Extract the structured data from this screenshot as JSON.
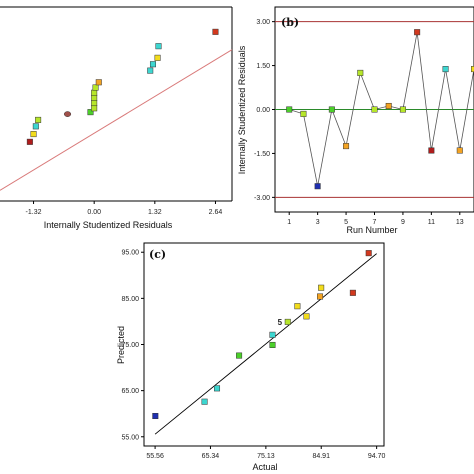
{
  "colors": {
    "blue": "#1f2fb0",
    "cyan": "#3dd6d0",
    "green": "#4ccf2a",
    "yellowgreen": "#b6e62a",
    "yellow": "#f2dc1c",
    "orange": "#f3a322",
    "red": "#d2381e",
    "darkred": "#b01c1c",
    "brown": "#a0504a",
    "fitline": "#d97a7a",
    "limitline": "#a83232",
    "zeroline": "#2a8a2a"
  },
  "chart_data": [
    {
      "panel": "a",
      "type": "scatter",
      "title": "",
      "xlabel": "Internally Studentized Residuals",
      "ylabel": "",
      "xlim": [
        -2.05,
        3.0
      ],
      "ylim": [
        0,
        1
      ],
      "xticks": [
        "-1.32",
        "0.00",
        "1.32",
        "2.64"
      ],
      "xtick_values": [
        -1.32,
        0.0,
        1.32,
        2.64
      ],
      "fit_line": {
        "x": [
          -2.05,
          3.0
        ],
        "y": [
          0.055,
          0.78
        ]
      },
      "points": [
        {
          "x": -1.4,
          "y": 0.305,
          "color": "darkred",
          "shape": "square"
        },
        {
          "x": -1.32,
          "y": 0.345,
          "color": "yellow",
          "shape": "square"
        },
        {
          "x": -1.27,
          "y": 0.385,
          "color": "cyan",
          "shape": "square"
        },
        {
          "x": -1.22,
          "y": 0.418,
          "color": "yellowgreen",
          "shape": "square"
        },
        {
          "x": -0.58,
          "y": 0.448,
          "color": "brown",
          "shape": "circle"
        },
        {
          "x": -0.08,
          "y": 0.458,
          "color": "green",
          "shape": "square"
        },
        {
          "x": 0.0,
          "y": 0.478,
          "color": "yellowgreen",
          "shape": "square"
        },
        {
          "x": 0.0,
          "y": 0.505,
          "color": "yellowgreen",
          "shape": "square"
        },
        {
          "x": 0.0,
          "y": 0.532,
          "color": "yellowgreen",
          "shape": "square"
        },
        {
          "x": 0.0,
          "y": 0.558,
          "color": "yellowgreen",
          "shape": "square"
        },
        {
          "x": 0.03,
          "y": 0.585,
          "color": "yellowgreen",
          "shape": "square"
        },
        {
          "x": 0.1,
          "y": 0.612,
          "color": "orange",
          "shape": "square"
        },
        {
          "x": 1.22,
          "y": 0.672,
          "color": "cyan",
          "shape": "square"
        },
        {
          "x": 1.28,
          "y": 0.705,
          "color": "cyan",
          "shape": "square"
        },
        {
          "x": 1.38,
          "y": 0.738,
          "color": "yellow",
          "shape": "square"
        },
        {
          "x": 1.4,
          "y": 0.798,
          "color": "cyan",
          "shape": "square"
        },
        {
          "x": 2.64,
          "y": 0.872,
          "color": "red",
          "shape": "square"
        }
      ]
    },
    {
      "panel": "b",
      "type": "line",
      "tag": "(b)",
      "title": "",
      "xlabel": "Run Number",
      "ylabel": "Internally Studentized Residuals",
      "xlim": [
        0,
        14
      ],
      "ylim": [
        -3.5,
        3.5
      ],
      "xticks": [
        "1",
        "3",
        "5",
        "7",
        "9",
        "11",
        "13"
      ],
      "xtick_values": [
        1,
        3,
        5,
        7,
        9,
        11,
        13
      ],
      "yticks": [
        "3.00",
        "1.50",
        "0.00",
        "-1.50",
        "-3.00"
      ],
      "ytick_values": [
        3.0,
        1.5,
        0.0,
        -1.5,
        -3.0
      ],
      "limits": [
        3.0,
        -3.0
      ],
      "x": [
        1,
        2,
        3,
        4,
        5,
        6,
        7,
        8,
        9,
        10,
        11,
        12,
        13,
        14
      ],
      "y": [
        0.0,
        -0.15,
        -2.62,
        0.0,
        -1.25,
        1.25,
        0.0,
        0.12,
        0.0,
        2.64,
        -1.4,
        1.38,
        -1.4,
        1.38
      ],
      "colors": [
        "green",
        "yellowgreen",
        "blue",
        "green",
        "orange",
        "yellowgreen",
        "yellowgreen",
        "orange",
        "yellowgreen",
        "red",
        "darkred",
        "cyan",
        "orange",
        "yellow"
      ]
    },
    {
      "panel": "c",
      "type": "scatter",
      "tag": "(c)",
      "title": "",
      "xlabel": "Actual",
      "ylabel": "Predicted",
      "xlim": [
        53.6,
        96.0
      ],
      "ylim": [
        53.0,
        97.0
      ],
      "xticks": [
        "55.56",
        "65.34",
        "75.13",
        "84.91",
        "94.70"
      ],
      "xtick_values": [
        55.56,
        65.34,
        75.13,
        84.91,
        94.7
      ],
      "yticks": [
        "95.00",
        "85.00",
        "75.00",
        "65.00",
        "55.00"
      ],
      "ytick_values": [
        95.0,
        85.0,
        75.0,
        65.0,
        55.0
      ],
      "fit_line": {
        "x": [
          55.56,
          94.7
        ],
        "y": [
          55.56,
          94.7
        ]
      },
      "annotations": [
        {
          "text": "5",
          "x": 78.0,
          "y": 79.9
        }
      ],
      "points": [
        {
          "x": 55.6,
          "y": 59.5,
          "color": "blue"
        },
        {
          "x": 64.3,
          "y": 62.6,
          "color": "cyan"
        },
        {
          "x": 66.5,
          "y": 65.5,
          "color": "cyan"
        },
        {
          "x": 70.4,
          "y": 72.6,
          "color": "green"
        },
        {
          "x": 76.3,
          "y": 74.9,
          "color": "green"
        },
        {
          "x": 76.3,
          "y": 77.1,
          "color": "cyan"
        },
        {
          "x": 79.0,
          "y": 79.9,
          "color": "yellowgreen"
        },
        {
          "x": 80.7,
          "y": 83.3,
          "color": "yellow"
        },
        {
          "x": 82.3,
          "y": 81.1,
          "color": "yellow"
        },
        {
          "x": 84.7,
          "y": 85.4,
          "color": "orange"
        },
        {
          "x": 84.9,
          "y": 87.3,
          "color": "yellow"
        },
        {
          "x": 90.5,
          "y": 86.2,
          "color": "red"
        },
        {
          "x": 93.3,
          "y": 94.8,
          "color": "red"
        }
      ]
    }
  ]
}
